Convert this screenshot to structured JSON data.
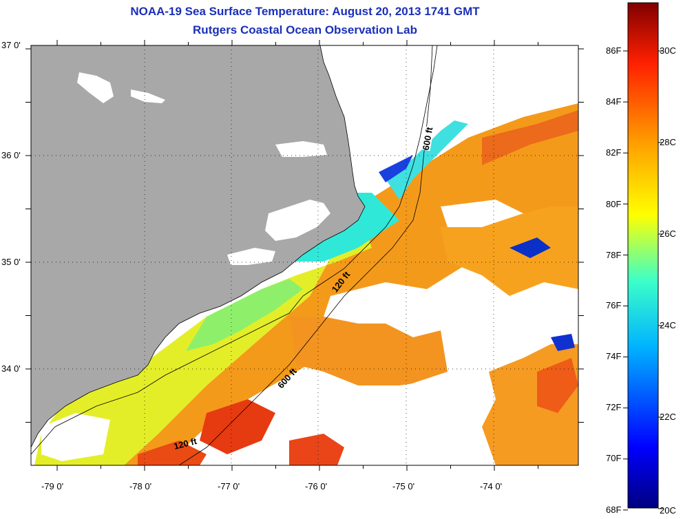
{
  "title_line1": "NOAA-19 Sea Surface Temperature:  August 20, 2013 1741 GMT",
  "title_line2": "Rutgers Coastal Ocean Observation Lab",
  "lat_labels": [
    "37 0'",
    "36 0'",
    "35 0'",
    "34 0'"
  ],
  "lon_labels": [
    "-79 0'",
    "-78 0'",
    "-77 0'",
    "-76 0'",
    "-75 0'",
    "-74 0'"
  ],
  "contour_labels": [
    "600 ft",
    "120 ft",
    "600 ft",
    "120 ft"
  ],
  "colorbar": {
    "f_labels": [
      "86F",
      "84F",
      "82F",
      "80F",
      "78F",
      "76F",
      "74F",
      "72F",
      "70F",
      "68F"
    ],
    "c_labels": [
      "30C",
      "28C",
      "26C",
      "24C",
      "22C",
      "20C"
    ],
    "colors": [
      "#000080",
      "#0000ff",
      "#00c8ff",
      "#3cffc0",
      "#ffff00",
      "#ffa000",
      "#ff2000",
      "#800000"
    ]
  },
  "colors": {
    "land": "#a8a8a8",
    "cloud": "#ffffff",
    "title": "#1a2fb8"
  }
}
